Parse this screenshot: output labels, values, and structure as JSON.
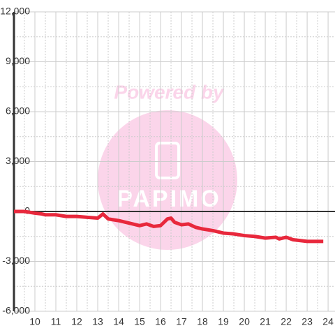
{
  "chart_data": {
    "type": "line",
    "watermark": "Powered by",
    "watermark_logo": "PAPIMO",
    "x": [
      9.0,
      9.5,
      10.0,
      10.33,
      10.5,
      11.0,
      11.5,
      12.0,
      12.5,
      13.0,
      13.25,
      13.5,
      14.0,
      14.5,
      15.0,
      15.33,
      15.67,
      16.0,
      16.33,
      16.5,
      16.67,
      17.0,
      17.33,
      17.67,
      18.0,
      18.5,
      19.0,
      19.5,
      20.0,
      20.5,
      21.0,
      21.5,
      21.67,
      22.0,
      22.33,
      23.0,
      23.77
    ],
    "series": [
      {
        "color": "#e8283c",
        "values": [
          0,
          0,
          -100,
          -150,
          -200,
          -200,
          -300,
          -300,
          -350,
          -400,
          -150,
          -450,
          -550,
          -700,
          -850,
          -750,
          -900,
          -850,
          -450,
          -400,
          -650,
          -800,
          -750,
          -950,
          -1050,
          -1150,
          -1300,
          -1350,
          -1450,
          -1500,
          -1600,
          -1550,
          -1650,
          -1550,
          -1700,
          -1800,
          -1800
        ]
      }
    ],
    "xlim": [
      9.0,
      24.33
    ],
    "xticks": [
      10,
      11,
      12,
      13,
      14,
      15,
      16,
      17,
      18,
      19,
      20,
      21,
      22,
      23,
      24
    ],
    "ylim": [
      -6000,
      12000
    ],
    "yticks": [
      {
        "value": -6000,
        "label": "-6,000"
      },
      {
        "value": -3000,
        "label": "-3,000"
      },
      0,
      {
        "value": 3000,
        "label": "3,000"
      },
      {
        "value": 6000,
        "label": "6,000"
      },
      {
        "value": 9000,
        "label": "9,000"
      },
      {
        "value": 12000,
        "label": "12,000"
      }
    ],
    "grid": true
  }
}
